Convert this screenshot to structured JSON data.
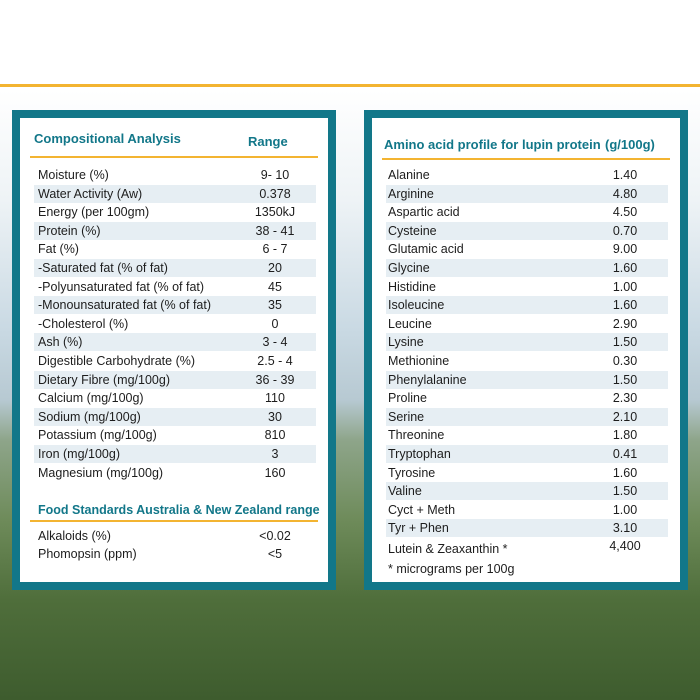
{
  "composition": {
    "title": "Compositional Analysis",
    "range_header": "Range",
    "rows": [
      [
        "Moisture (%)",
        "9- 10"
      ],
      [
        "Water Activity (Aw)",
        "0.378"
      ],
      [
        "Energy (per 100gm)",
        "1350kJ"
      ],
      [
        "Protein (%)",
        "38 - 41"
      ],
      [
        "Fat (%)",
        "6 - 7"
      ],
      [
        "-Saturated fat (% of fat)",
        "20"
      ],
      [
        "-Polyunsaturated fat (% of fat)",
        "45"
      ],
      [
        "-Monounsaturated fat (% of fat)",
        "35"
      ],
      [
        "-Cholesterol (%)",
        "0"
      ],
      [
        "Ash (%)",
        "3 - 4"
      ],
      [
        "Digestible Carbohydrate (%)",
        "2.5 - 4"
      ],
      [
        "Dietary Fibre (mg/100g)",
        "36 - 39"
      ],
      [
        "Calcium (mg/100g)",
        "110"
      ],
      [
        "Sodium (mg/100g)",
        "30"
      ],
      [
        "Potassium (mg/100g)",
        "810"
      ],
      [
        "Iron (mg/100g)",
        "3"
      ],
      [
        "Magnesium (mg/100g)",
        "160"
      ]
    ],
    "fsanz": {
      "title": "Food Standards Australia & New Zealand range",
      "rows": [
        [
          "Alkaloids (%)",
          "<0.02"
        ],
        [
          "Phomopsin (ppm)",
          "<5"
        ]
      ]
    }
  },
  "amino": {
    "title": "Amino acid profile for lupin protein",
    "unit_header": "(g/100g)",
    "rows": [
      [
        "Alanine",
        "1.40"
      ],
      [
        "Arginine",
        "4.80"
      ],
      [
        "Aspartic acid",
        "4.50"
      ],
      [
        "Cysteine",
        "0.70"
      ],
      [
        "Glutamic acid",
        "9.00"
      ],
      [
        "Glycine",
        "1.60"
      ],
      [
        "Histidine",
        "1.00"
      ],
      [
        "Isoleucine",
        "1.60"
      ],
      [
        "Leucine",
        "2.90"
      ],
      [
        "Lysine",
        "1.50"
      ],
      [
        "Methionine",
        "0.30"
      ],
      [
        "Phenylalanine",
        "1.50"
      ],
      [
        "Proline",
        "2.30"
      ],
      [
        "Serine",
        "2.10"
      ],
      [
        "Threonine",
        "1.80"
      ],
      [
        "Tryptophan",
        "0.41"
      ],
      [
        "Tyrosine",
        "1.60"
      ],
      [
        "Valine",
        "1.50"
      ],
      [
        "Cyct + Meth",
        "1.00"
      ],
      [
        "Tyr + Phen",
        "3.10"
      ]
    ],
    "lutein": [
      "Lutein & Zeaxanthin *",
      "4,400"
    ],
    "note": "* micrograms per 100g"
  }
}
